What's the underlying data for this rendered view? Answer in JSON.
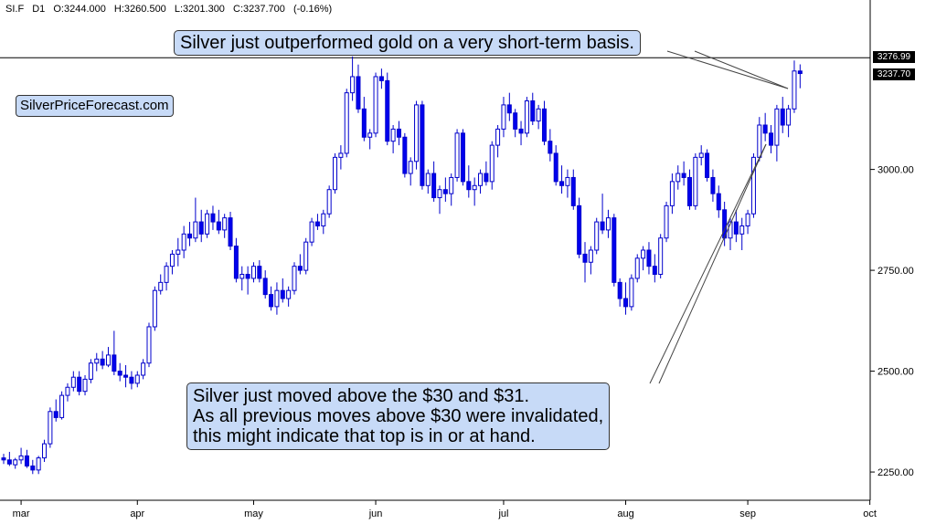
{
  "header": {
    "symbol": "SI.F",
    "timeframe": "D1",
    "open": "O:3244.000",
    "high": "H:3260.500",
    "low": "L:3201.300",
    "close": "C:3237.700",
    "change": "(-0.16%)"
  },
  "watermark": "SilverPriceForecast.com",
  "annotations": {
    "top": "Silver just outperformed gold on a very short-term basis.",
    "bottom": [
      "Silver just moved above the $30 and $31.",
      "As all previous moves above $30 were invalidated,",
      "this might indicate that top is in or at hand."
    ]
  },
  "price_tags": {
    "high_line": "3276.99",
    "last": "3237.70"
  },
  "colors": {
    "bull_body": "#ffffff",
    "bear_body": "#0000ee",
    "wick": "#0000cc",
    "callout_bg": "#c7daf7",
    "axis": "#000000",
    "price_tag_bg": "#000000"
  },
  "chart_data": {
    "type": "candlestick",
    "ylim": [
      2180,
      3420
    ],
    "y_ticks": [
      "3000.00",
      "2750.00",
      "2500.00",
      "2250.00"
    ],
    "y_tick_values": [
      3000,
      2750,
      2500,
      2250
    ],
    "x_ticks": [
      "mar",
      "apr",
      "may",
      "jun",
      "jul",
      "aug",
      "sep",
      "oct"
    ],
    "x_tick_days": [
      3,
      23,
      43,
      64,
      86,
      107,
      128,
      149
    ],
    "horizontal_line": 3276.99,
    "grid": false,
    "candles": [
      {
        "d": 0,
        "o": 2285,
        "h": 2295,
        "l": 2270,
        "c": 2280
      },
      {
        "d": 1,
        "o": 2280,
        "h": 2300,
        "l": 2265,
        "c": 2270
      },
      {
        "d": 2,
        "o": 2268,
        "h": 2285,
        "l": 2258,
        "c": 2280
      },
      {
        "d": 3,
        "o": 2280,
        "h": 2310,
        "l": 2270,
        "c": 2290
      },
      {
        "d": 4,
        "o": 2290,
        "h": 2305,
        "l": 2260,
        "c": 2265
      },
      {
        "d": 5,
        "o": 2265,
        "h": 2280,
        "l": 2245,
        "c": 2255
      },
      {
        "d": 6,
        "o": 2255,
        "h": 2290,
        "l": 2245,
        "c": 2285
      },
      {
        "d": 7,
        "o": 2285,
        "h": 2330,
        "l": 2275,
        "c": 2320
      },
      {
        "d": 8,
        "o": 2320,
        "h": 2410,
        "l": 2310,
        "c": 2400
      },
      {
        "d": 9,
        "o": 2400,
        "h": 2430,
        "l": 2375,
        "c": 2385
      },
      {
        "d": 10,
        "o": 2385,
        "h": 2450,
        "l": 2380,
        "c": 2440
      },
      {
        "d": 11,
        "o": 2440,
        "h": 2470,
        "l": 2425,
        "c": 2460
      },
      {
        "d": 12,
        "o": 2460,
        "h": 2500,
        "l": 2450,
        "c": 2485
      },
      {
        "d": 13,
        "o": 2485,
        "h": 2500,
        "l": 2440,
        "c": 2450
      },
      {
        "d": 14,
        "o": 2450,
        "h": 2490,
        "l": 2440,
        "c": 2480
      },
      {
        "d": 15,
        "o": 2480,
        "h": 2530,
        "l": 2470,
        "c": 2520
      },
      {
        "d": 16,
        "o": 2520,
        "h": 2545,
        "l": 2500,
        "c": 2530
      },
      {
        "d": 17,
        "o": 2530,
        "h": 2550,
        "l": 2505,
        "c": 2515
      },
      {
        "d": 18,
        "o": 2515,
        "h": 2560,
        "l": 2510,
        "c": 2540
      },
      {
        "d": 19,
        "o": 2540,
        "h": 2600,
        "l": 2490,
        "c": 2500
      },
      {
        "d": 20,
        "o": 2500,
        "h": 2520,
        "l": 2475,
        "c": 2490
      },
      {
        "d": 21,
        "o": 2490,
        "h": 2515,
        "l": 2460,
        "c": 2485
      },
      {
        "d": 22,
        "o": 2485,
        "h": 2500,
        "l": 2455,
        "c": 2470
      },
      {
        "d": 23,
        "o": 2470,
        "h": 2500,
        "l": 2460,
        "c": 2490
      },
      {
        "d": 24,
        "o": 2490,
        "h": 2530,
        "l": 2480,
        "c": 2520
      },
      {
        "d": 25,
        "o": 2520,
        "h": 2620,
        "l": 2510,
        "c": 2610
      },
      {
        "d": 26,
        "o": 2610,
        "h": 2710,
        "l": 2600,
        "c": 2700
      },
      {
        "d": 27,
        "o": 2700,
        "h": 2740,
        "l": 2690,
        "c": 2720
      },
      {
        "d": 28,
        "o": 2720,
        "h": 2770,
        "l": 2700,
        "c": 2760
      },
      {
        "d": 29,
        "o": 2760,
        "h": 2800,
        "l": 2740,
        "c": 2790
      },
      {
        "d": 30,
        "o": 2790,
        "h": 2830,
        "l": 2760,
        "c": 2800
      },
      {
        "d": 31,
        "o": 2800,
        "h": 2860,
        "l": 2780,
        "c": 2840
      },
      {
        "d": 32,
        "o": 2840,
        "h": 2870,
        "l": 2810,
        "c": 2830
      },
      {
        "d": 33,
        "o": 2830,
        "h": 2930,
        "l": 2820,
        "c": 2870
      },
      {
        "d": 34,
        "o": 2870,
        "h": 2900,
        "l": 2820,
        "c": 2840
      },
      {
        "d": 35,
        "o": 2840,
        "h": 2900,
        "l": 2830,
        "c": 2890
      },
      {
        "d": 36,
        "o": 2890,
        "h": 2910,
        "l": 2850,
        "c": 2870
      },
      {
        "d": 37,
        "o": 2870,
        "h": 2900,
        "l": 2840,
        "c": 2850
      },
      {
        "d": 38,
        "o": 2850,
        "h": 2890,
        "l": 2830,
        "c": 2880
      },
      {
        "d": 39,
        "o": 2880,
        "h": 2895,
        "l": 2800,
        "c": 2810
      },
      {
        "d": 40,
        "o": 2810,
        "h": 2830,
        "l": 2720,
        "c": 2730
      },
      {
        "d": 41,
        "o": 2730,
        "h": 2760,
        "l": 2700,
        "c": 2740
      },
      {
        "d": 42,
        "o": 2740,
        "h": 2760,
        "l": 2690,
        "c": 2730
      },
      {
        "d": 43,
        "o": 2730,
        "h": 2770,
        "l": 2720,
        "c": 2760
      },
      {
        "d": 44,
        "o": 2760,
        "h": 2775,
        "l": 2720,
        "c": 2730
      },
      {
        "d": 45,
        "o": 2730,
        "h": 2750,
        "l": 2680,
        "c": 2690
      },
      {
        "d": 46,
        "o": 2690,
        "h": 2710,
        "l": 2650,
        "c": 2660
      },
      {
        "d": 47,
        "o": 2660,
        "h": 2720,
        "l": 2640,
        "c": 2700
      },
      {
        "d": 48,
        "o": 2700,
        "h": 2730,
        "l": 2670,
        "c": 2680
      },
      {
        "d": 49,
        "o": 2680,
        "h": 2710,
        "l": 2660,
        "c": 2700
      },
      {
        "d": 50,
        "o": 2700,
        "h": 2770,
        "l": 2690,
        "c": 2760
      },
      {
        "d": 51,
        "o": 2760,
        "h": 2790,
        "l": 2740,
        "c": 2750
      },
      {
        "d": 52,
        "o": 2750,
        "h": 2830,
        "l": 2740,
        "c": 2820
      },
      {
        "d": 53,
        "o": 2820,
        "h": 2880,
        "l": 2810,
        "c": 2870
      },
      {
        "d": 54,
        "o": 2870,
        "h": 2890,
        "l": 2850,
        "c": 2860
      },
      {
        "d": 55,
        "o": 2860,
        "h": 2900,
        "l": 2840,
        "c": 2890
      },
      {
        "d": 56,
        "o": 2890,
        "h": 2960,
        "l": 2880,
        "c": 2950
      },
      {
        "d": 57,
        "o": 2950,
        "h": 3040,
        "l": 2940,
        "c": 3030
      },
      {
        "d": 58,
        "o": 3030,
        "h": 3060,
        "l": 3000,
        "c": 3040
      },
      {
        "d": 59,
        "o": 3040,
        "h": 3200,
        "l": 3030,
        "c": 3190
      },
      {
        "d": 60,
        "o": 3190,
        "h": 3280,
        "l": 3170,
        "c": 3230
      },
      {
        "d": 61,
        "o": 3230,
        "h": 3260,
        "l": 3140,
        "c": 3150
      },
      {
        "d": 62,
        "o": 3150,
        "h": 3180,
        "l": 3070,
        "c": 3080
      },
      {
        "d": 63,
        "o": 3080,
        "h": 3100,
        "l": 3050,
        "c": 3090
      },
      {
        "d": 64,
        "o": 3090,
        "h": 3240,
        "l": 3080,
        "c": 3230
      },
      {
        "d": 65,
        "o": 3230,
        "h": 3250,
        "l": 3200,
        "c": 3220
      },
      {
        "d": 66,
        "o": 3220,
        "h": 3240,
        "l": 3060,
        "c": 3070
      },
      {
        "d": 67,
        "o": 3070,
        "h": 3110,
        "l": 3040,
        "c": 3100
      },
      {
        "d": 68,
        "o": 3100,
        "h": 3120,
        "l": 3060,
        "c": 3080
      },
      {
        "d": 69,
        "o": 3080,
        "h": 3090,
        "l": 2980,
        "c": 2990
      },
      {
        "d": 70,
        "o": 2990,
        "h": 3030,
        "l": 2960,
        "c": 3020
      },
      {
        "d": 71,
        "o": 3020,
        "h": 3170,
        "l": 3000,
        "c": 3160
      },
      {
        "d": 72,
        "o": 3160,
        "h": 3170,
        "l": 2950,
        "c": 2960
      },
      {
        "d": 73,
        "o": 2960,
        "h": 3000,
        "l": 2940,
        "c": 2990
      },
      {
        "d": 74,
        "o": 2990,
        "h": 3020,
        "l": 2920,
        "c": 2930
      },
      {
        "d": 75,
        "o": 2930,
        "h": 2960,
        "l": 2890,
        "c": 2950
      },
      {
        "d": 76,
        "o": 2950,
        "h": 2980,
        "l": 2920,
        "c": 2940
      },
      {
        "d": 77,
        "o": 2940,
        "h": 2990,
        "l": 2910,
        "c": 2980
      },
      {
        "d": 78,
        "o": 2980,
        "h": 3100,
        "l": 2970,
        "c": 3090
      },
      {
        "d": 79,
        "o": 3090,
        "h": 3100,
        "l": 2960,
        "c": 2970
      },
      {
        "d": 80,
        "o": 2970,
        "h": 3010,
        "l": 2930,
        "c": 2950
      },
      {
        "d": 81,
        "o": 2950,
        "h": 2980,
        "l": 2910,
        "c": 2960
      },
      {
        "d": 82,
        "o": 2960,
        "h": 3000,
        "l": 2940,
        "c": 2990
      },
      {
        "d": 83,
        "o": 2990,
        "h": 3020,
        "l": 2960,
        "c": 2970
      },
      {
        "d": 84,
        "o": 2970,
        "h": 3070,
        "l": 2950,
        "c": 3060
      },
      {
        "d": 85,
        "o": 3060,
        "h": 3110,
        "l": 3030,
        "c": 3100
      },
      {
        "d": 86,
        "o": 3100,
        "h": 3180,
        "l": 3080,
        "c": 3160
      },
      {
        "d": 87,
        "o": 3160,
        "h": 3190,
        "l": 3120,
        "c": 3140
      },
      {
        "d": 88,
        "o": 3140,
        "h": 3150,
        "l": 3080,
        "c": 3100
      },
      {
        "d": 89,
        "o": 3100,
        "h": 3120,
        "l": 3060,
        "c": 3090
      },
      {
        "d": 90,
        "o": 3090,
        "h": 3180,
        "l": 3080,
        "c": 3170
      },
      {
        "d": 91,
        "o": 3170,
        "h": 3190,
        "l": 3110,
        "c": 3120
      },
      {
        "d": 92,
        "o": 3120,
        "h": 3160,
        "l": 3100,
        "c": 3150
      },
      {
        "d": 93,
        "o": 3150,
        "h": 3170,
        "l": 3060,
        "c": 3070
      },
      {
        "d": 94,
        "o": 3070,
        "h": 3100,
        "l": 3020,
        "c": 3040
      },
      {
        "d": 95,
        "o": 3040,
        "h": 3060,
        "l": 2960,
        "c": 2970
      },
      {
        "d": 96,
        "o": 2970,
        "h": 3010,
        "l": 2940,
        "c": 2960
      },
      {
        "d": 97,
        "o": 2960,
        "h": 3000,
        "l": 2930,
        "c": 2980
      },
      {
        "d": 98,
        "o": 2980,
        "h": 3000,
        "l": 2900,
        "c": 2910
      },
      {
        "d": 99,
        "o": 2910,
        "h": 2930,
        "l": 2780,
        "c": 2790
      },
      {
        "d": 100,
        "o": 2790,
        "h": 2820,
        "l": 2720,
        "c": 2770
      },
      {
        "d": 101,
        "o": 2770,
        "h": 2810,
        "l": 2740,
        "c": 2800
      },
      {
        "d": 102,
        "o": 2800,
        "h": 2880,
        "l": 2790,
        "c": 2870
      },
      {
        "d": 103,
        "o": 2870,
        "h": 2940,
        "l": 2840,
        "c": 2850
      },
      {
        "d": 104,
        "o": 2850,
        "h": 2900,
        "l": 2830,
        "c": 2880
      },
      {
        "d": 105,
        "o": 2880,
        "h": 2890,
        "l": 2710,
        "c": 2720
      },
      {
        "d": 106,
        "o": 2720,
        "h": 2730,
        "l": 2660,
        "c": 2680
      },
      {
        "d": 107,
        "o": 2680,
        "h": 2720,
        "l": 2640,
        "c": 2660
      },
      {
        "d": 108,
        "o": 2660,
        "h": 2740,
        "l": 2650,
        "c": 2730
      },
      {
        "d": 109,
        "o": 2730,
        "h": 2790,
        "l": 2720,
        "c": 2780
      },
      {
        "d": 110,
        "o": 2780,
        "h": 2810,
        "l": 2750,
        "c": 2800
      },
      {
        "d": 111,
        "o": 2800,
        "h": 2820,
        "l": 2740,
        "c": 2760
      },
      {
        "d": 112,
        "o": 2760,
        "h": 2790,
        "l": 2720,
        "c": 2740
      },
      {
        "d": 113,
        "o": 2740,
        "h": 2840,
        "l": 2730,
        "c": 2830
      },
      {
        "d": 114,
        "o": 2830,
        "h": 2920,
        "l": 2820,
        "c": 2910
      },
      {
        "d": 115,
        "o": 2910,
        "h": 2990,
        "l": 2890,
        "c": 2970
      },
      {
        "d": 116,
        "o": 2970,
        "h": 3010,
        "l": 2950,
        "c": 2990
      },
      {
        "d": 117,
        "o": 2990,
        "h": 3020,
        "l": 2960,
        "c": 2980
      },
      {
        "d": 118,
        "o": 2980,
        "h": 3000,
        "l": 2900,
        "c": 2910
      },
      {
        "d": 119,
        "o": 2910,
        "h": 3040,
        "l": 2900,
        "c": 3030
      },
      {
        "d": 120,
        "o": 3030,
        "h": 3060,
        "l": 3010,
        "c": 3040
      },
      {
        "d": 121,
        "o": 3040,
        "h": 3050,
        "l": 2970,
        "c": 2980
      },
      {
        "d": 122,
        "o": 2980,
        "h": 3000,
        "l": 2920,
        "c": 2940
      },
      {
        "d": 123,
        "o": 2940,
        "h": 2960,
        "l": 2880,
        "c": 2900
      },
      {
        "d": 124,
        "o": 2900,
        "h": 2920,
        "l": 2810,
        "c": 2830
      },
      {
        "d": 125,
        "o": 2830,
        "h": 2880,
        "l": 2800,
        "c": 2870
      },
      {
        "d": 126,
        "o": 2870,
        "h": 2900,
        "l": 2820,
        "c": 2840
      },
      {
        "d": 127,
        "o": 2840,
        "h": 2880,
        "l": 2800,
        "c": 2860
      },
      {
        "d": 128,
        "o": 2860,
        "h": 2900,
        "l": 2840,
        "c": 2890
      },
      {
        "d": 129,
        "o": 2890,
        "h": 3040,
        "l": 2880,
        "c": 3030
      },
      {
        "d": 130,
        "o": 3030,
        "h": 3130,
        "l": 3020,
        "c": 3110
      },
      {
        "d": 131,
        "o": 3110,
        "h": 3140,
        "l": 3070,
        "c": 3090
      },
      {
        "d": 132,
        "o": 3090,
        "h": 3110,
        "l": 3040,
        "c": 3060
      },
      {
        "d": 133,
        "o": 3060,
        "h": 3160,
        "l": 3020,
        "c": 3150
      },
      {
        "d": 134,
        "o": 3150,
        "h": 3180,
        "l": 3090,
        "c": 3110
      },
      {
        "d": 135,
        "o": 3110,
        "h": 3160,
        "l": 3080,
        "c": 3150
      },
      {
        "d": 136,
        "o": 3150,
        "h": 3270,
        "l": 3140,
        "c": 3244
      },
      {
        "d": 137,
        "o": 3244,
        "h": 3260.5,
        "l": 3201.3,
        "c": 3237.7
      }
    ]
  }
}
